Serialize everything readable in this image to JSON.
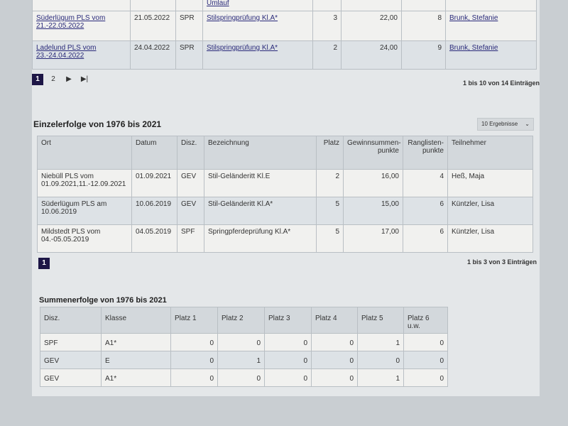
{
  "table1": {
    "partial_bez": "Umlauf",
    "rows": [
      {
        "ort": "Süderlügum PLS vom 21.-22.05.2022",
        "datum": "21.05.2022",
        "disz": "SPR",
        "bez": "Stilspringprüfung Kl.A*",
        "platz": "3",
        "gewinn": "22,00",
        "rangl": "8",
        "teiln": "Brunk, Stefanie"
      },
      {
        "ort": "Ladelund PLS vom 23.-24.04.2022",
        "datum": "24.04.2022",
        "disz": "SPR",
        "bez": "Stilspringprüfung Kl.A*",
        "platz": "2",
        "gewinn": "24,00",
        "rangl": "9",
        "teiln": "Brunk, Stefanie"
      }
    ],
    "pages": [
      "1",
      "2"
    ],
    "next": "▶",
    "last": "▶|",
    "info": "1 bis 10 von 14 Einträgen"
  },
  "einzel": {
    "title": "Einzelerfolge von 1976 bis 2021",
    "select": "10 Ergebnisse",
    "select_icon": "chevron-down",
    "headers": [
      "Ort",
      "Datum",
      "Disz.",
      "Bezeichnung",
      "Platz",
      "Gewinnsummen-punkte",
      "Ranglisten-punkte",
      "Teilnehmer"
    ],
    "rows": [
      {
        "ort": "Niebüll PLS vom 01.09.2021,11.-12.09.2021",
        "datum": "01.09.2021",
        "disz": "GEV",
        "bez": "Stil-Geländeritt Kl.E",
        "platz": "2",
        "gewinn": "16,00",
        "rangl": "4",
        "teiln": "Heß, Maja"
      },
      {
        "ort": "Süderlügum PLS am 10.06.2019",
        "datum": "10.06.2019",
        "disz": "GEV",
        "bez": "Stil-Geländeritt Kl.A*",
        "platz": "5",
        "gewinn": "15,00",
        "rangl": "6",
        "teiln": "Küntzler, Lisa"
      },
      {
        "ort": "Mildstedt PLS vom 04.-05.05.2019",
        "datum": "04.05.2019",
        "disz": "SPF",
        "bez": "Springpferdeprüfung Kl.A*",
        "platz": "5",
        "gewinn": "17,00",
        "rangl": "6",
        "teiln": "Küntzler, Lisa"
      }
    ],
    "page": "1",
    "info": "1 bis 3 von 3 Einträgen"
  },
  "summen": {
    "title": "Summenerfolge von 1976 bis 2021",
    "headers": [
      "Disz.",
      "Klasse",
      "Platz 1",
      "Platz 2",
      "Platz 3",
      "Platz 4",
      "Platz 5",
      "Platz 6 u.w."
    ],
    "rows": [
      [
        "SPF",
        "A1*",
        "0",
        "0",
        "0",
        "0",
        "1",
        "0"
      ],
      [
        "GEV",
        "E",
        "0",
        "1",
        "0",
        "0",
        "0",
        "0"
      ],
      [
        "GEV",
        "A1*",
        "0",
        "0",
        "0",
        "0",
        "1",
        "0"
      ]
    ]
  }
}
